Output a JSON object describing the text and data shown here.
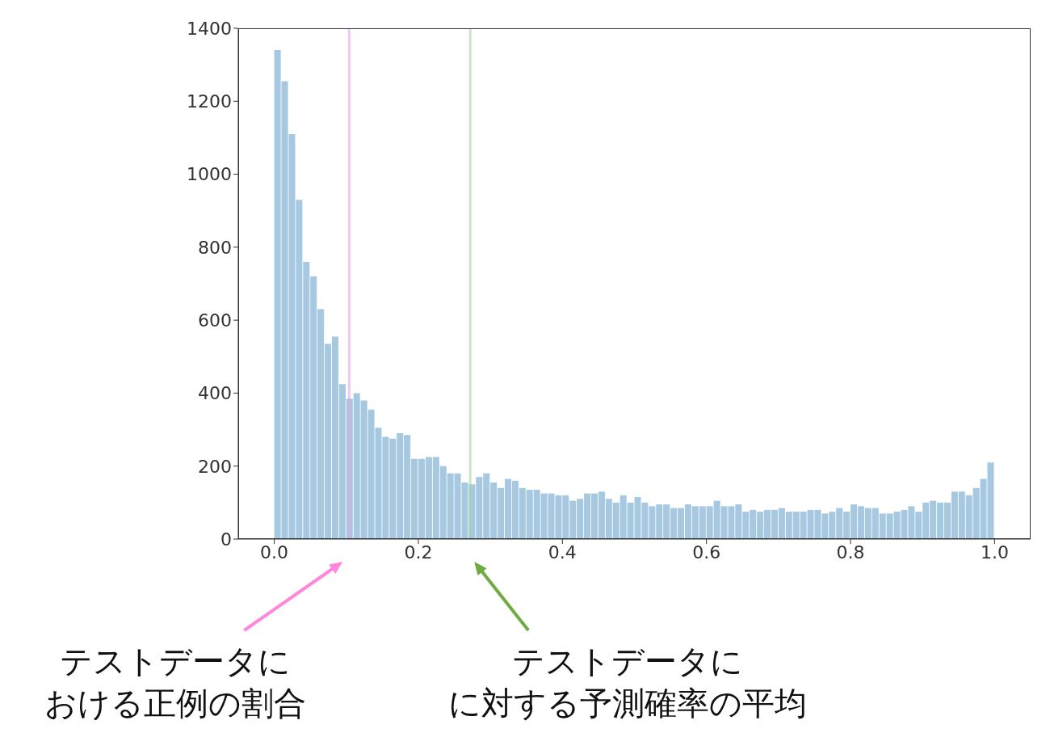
{
  "chart_data": {
    "type": "histogram",
    "bins": [
      0,
      0.01,
      0.02,
      0.03,
      0.04,
      0.05,
      0.06,
      0.07,
      0.08,
      0.09,
      0.1,
      0.11,
      0.12,
      0.13,
      0.14,
      0.15,
      0.16,
      0.17,
      0.18,
      0.19,
      0.2,
      0.21,
      0.22,
      0.23,
      0.24,
      0.25,
      0.26,
      0.27,
      0.28,
      0.29,
      0.3,
      0.31,
      0.32,
      0.33,
      0.34,
      0.35,
      0.36,
      0.37,
      0.38,
      0.39,
      0.4,
      0.41,
      0.42,
      0.43,
      0.44,
      0.45,
      0.46,
      0.47,
      0.48,
      0.49,
      0.5,
      0.51,
      0.52,
      0.53,
      0.54,
      0.55,
      0.56,
      0.57,
      0.58,
      0.59,
      0.6,
      0.61,
      0.62,
      0.63,
      0.64,
      0.65,
      0.66,
      0.67,
      0.68,
      0.69,
      0.7,
      0.71,
      0.72,
      0.73,
      0.74,
      0.75,
      0.76,
      0.77,
      0.78,
      0.79,
      0.8,
      0.81,
      0.82,
      0.83,
      0.84,
      0.85,
      0.86,
      0.87,
      0.88,
      0.89,
      0.9,
      0.91,
      0.92,
      0.93,
      0.94,
      0.95,
      0.96,
      0.97,
      0.98,
      0.99,
      1
    ],
    "values": [
      1340,
      1255,
      1110,
      930,
      760,
      720,
      630,
      535,
      555,
      425,
      385,
      400,
      380,
      355,
      305,
      280,
      275,
      290,
      285,
      220,
      220,
      225,
      225,
      200,
      180,
      180,
      155,
      150,
      170,
      180,
      155,
      140,
      165,
      160,
      140,
      135,
      135,
      125,
      125,
      120,
      120,
      105,
      110,
      125,
      125,
      130,
      110,
      100,
      120,
      100,
      115,
      100,
      90,
      95,
      95,
      85,
      85,
      95,
      90,
      90,
      90,
      105,
      90,
      90,
      95,
      75,
      80,
      75,
      80,
      80,
      85,
      75,
      75,
      75,
      80,
      80,
      70,
      75,
      85,
      75,
      95,
      90,
      85,
      85,
      70,
      70,
      75,
      80,
      90,
      75,
      100,
      105,
      100,
      100,
      130,
      130,
      120,
      140,
      165,
      210
    ],
    "color": "#a6c8e0",
    "xlim": [
      -0.05,
      1.05
    ],
    "xticks": [
      {
        "value": 0,
        "label": "0.0"
      },
      {
        "value": 0.2,
        "label": "0.2"
      },
      {
        "value": 0.4,
        "label": "0.4"
      },
      {
        "value": 0.6,
        "label": "0.6"
      },
      {
        "value": 0.8,
        "label": "0.8"
      },
      {
        "value": 1,
        "label": "1.0"
      }
    ],
    "ylim": [
      0,
      1400
    ],
    "yticks": [
      0,
      200,
      400,
      600,
      800,
      1000,
      1200,
      1400
    ],
    "grid": false,
    "legend": false,
    "ref_lines": [
      {
        "axis": "x",
        "value": 0.104,
        "color": "#e9a3e9"
      },
      {
        "axis": "x",
        "value": 0.272,
        "color": "#a3d5a3"
      }
    ],
    "annotations": [
      "テストデータにおける正例の割合",
      "テストデータにに対する予測確率の平均"
    ]
  }
}
